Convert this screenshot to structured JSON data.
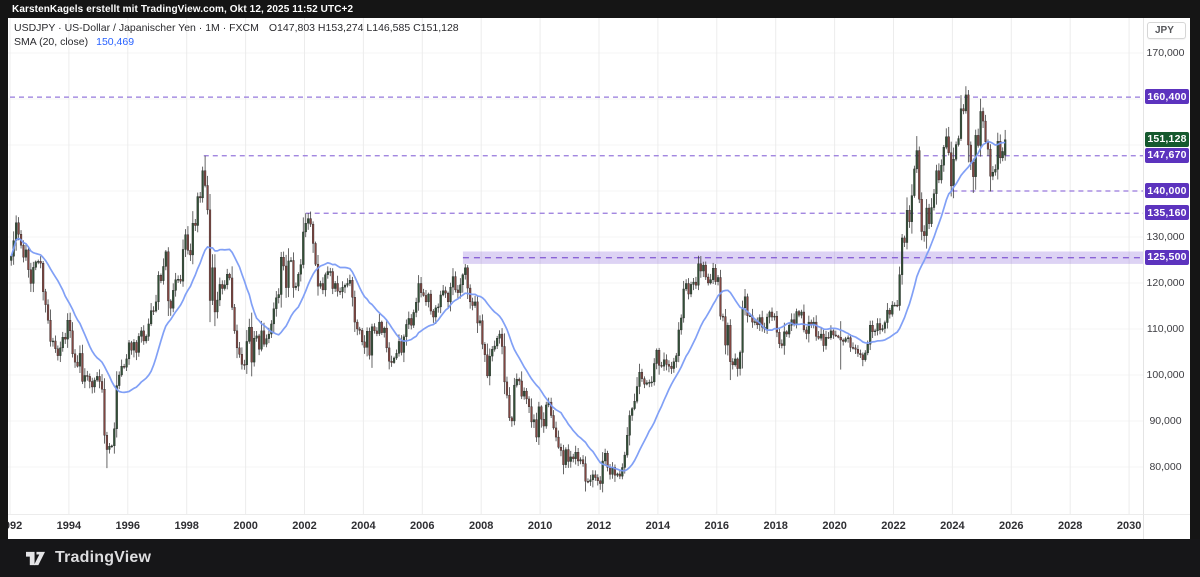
{
  "topbar": {
    "attribution": "KarstenKagels erstellt mit TradingView.com, Okt 12, 2025 11:52 UTC+2"
  },
  "legend": {
    "symbol_line": "USDJPY · US-Dollar / Japanischer Yen · 1M · FXCM",
    "ohlc_line": "O147,803  H153,274  L146,585  C151,128",
    "sma_label": "SMA (20, close)",
    "sma_value": "150,469"
  },
  "axes": {
    "currency_button": "JPY",
    "price_ticks": [
      {
        "label": "170,000",
        "value": 170
      },
      {
        "label": "130,000",
        "value": 130
      },
      {
        "label": "120,000",
        "value": 120
      },
      {
        "label": "110,000",
        "value": 110
      },
      {
        "label": "100,000",
        "value": 100
      },
      {
        "label": "90,000",
        "value": 90
      },
      {
        "label": "80,000",
        "value": 80
      }
    ],
    "price_grid": [
      170,
      160,
      150,
      140,
      130,
      120,
      110,
      100,
      90,
      80
    ],
    "time_ticks": [
      {
        "label": "1992",
        "year": 1992
      },
      {
        "label": "1994",
        "year": 1994
      },
      {
        "label": "1996",
        "year": 1996
      },
      {
        "label": "1998",
        "year": 1998
      },
      {
        "label": "2000",
        "year": 2000
      },
      {
        "label": "2002",
        "year": 2002
      },
      {
        "label": "2004",
        "year": 2004
      },
      {
        "label": "2006",
        "year": 2006
      },
      {
        "label": "2008",
        "year": 2008
      },
      {
        "label": "2010",
        "year": 2010
      },
      {
        "label": "2012",
        "year": 2012
      },
      {
        "label": "2014",
        "year": 2014
      },
      {
        "label": "2016",
        "year": 2016
      },
      {
        "label": "2018",
        "year": 2018
      },
      {
        "label": "2020",
        "year": 2020
      },
      {
        "label": "2022",
        "year": 2022
      },
      {
        "label": "2024",
        "year": 2024
      },
      {
        "label": "2026",
        "year": 2026
      },
      {
        "label": "2028",
        "year": 2028
      },
      {
        "label": "2030",
        "year": 2030
      }
    ]
  },
  "footer": {
    "brand": "TradingView"
  },
  "colors": {
    "badge_purple": "#5c33be",
    "badge_green": "#15592e",
    "candle_up": "#325037",
    "candle_down": "#824641",
    "candle_border": "#232323",
    "wick": "#3f3f3f",
    "sma": "#7a9bf5",
    "level": "#9678dc",
    "band_fill": "rgba(148,118,222,0.32)",
    "band_line": "#8a63d6",
    "grid_v": "#ececec",
    "grid_h": "#f5f5f5",
    "legend_blue": "#2962ff"
  },
  "chart_data": {
    "type": "candlestick",
    "symbol": "USDJPY",
    "description": "US-Dollar / Japanischer Yen",
    "timeframe": "1M",
    "exchange": "FXCM",
    "x_range": [
      1992,
      2030.6
    ],
    "y_range_thousandths": [
      75,
      172
    ],
    "grid": true,
    "sma": {
      "period": 20,
      "source": "close",
      "last_value": 150.469
    },
    "last_candle": {
      "key": "2025-10",
      "o": 147.803,
      "h": 153.274,
      "l": 146.585,
      "c": 151.128
    },
    "first_open": 124.9,
    "monthly_closes": {
      "1992": [
        125.8,
        129.2,
        133.1,
        130.6,
        128.2,
        125.6,
        127.2,
        122.9,
        119.9,
        123.4,
        124.6,
        124.7
      ],
      "1993": [
        124.3,
        118.1,
        115.3,
        111.9,
        107.3,
        107.4,
        105.7,
        104.2,
        105.9,
        108.2,
        107.8,
        111.9
      ],
      "1994": [
        109.6,
        104.6,
        102.8,
        101.9,
        104.7,
        98.6,
        99.9,
        99.7,
        98.6,
        97.4,
        98.9,
        99.7
      ],
      "1995": [
        98.6,
        96.9,
        86.9,
        83.8,
        84.5,
        84.6,
        88.3,
        97.7,
        100.0,
        101.9,
        101.7,
        103.5
      ],
      "1996": [
        107.0,
        105.4,
        107.1,
        104.9,
        108.4,
        109.6,
        107.4,
        108.4,
        111.1,
        114.0,
        113.9,
        115.9
      ],
      "1997": [
        121.7,
        120.5,
        123.6,
        126.8,
        116.1,
        114.5,
        118.4,
        120.7,
        120.8,
        120.4,
        127.3,
        130.5
      ],
      "1998": [
        127.1,
        126.1,
        133.0,
        132.5,
        138.8,
        138.5,
        144.4,
        141.2,
        135.9,
        116.2,
        123.3,
        113.7
      ],
      "1999": [
        116.3,
        119.7,
        118.8,
        119.6,
        121.9,
        121.1,
        114.7,
        109.6,
        105.9,
        104.5,
        102.3,
        102.2
      ],
      "2000": [
        107.3,
        110.4,
        102.8,
        108.0,
        108.5,
        105.6,
        109.6,
        106.7,
        107.9,
        108.9,
        111.1,
        114.4
      ],
      "2001": [
        116.8,
        117.5,
        125.6,
        123.7,
        119.0,
        124.8,
        124.9,
        119.0,
        119.3,
        121.9,
        124.0,
        131.1
      ],
      "2002": [
        133.0,
        134.0,
        132.8,
        128.6,
        124.1,
        119.3,
        119.9,
        118.5,
        121.8,
        122.5,
        122.5,
        118.8
      ],
      "2003": [
        119.9,
        118.2,
        118.1,
        119.1,
        119.5,
        119.9,
        120.6,
        116.9,
        111.5,
        110.0,
        109.7,
        107.2
      ],
      "2004": [
        106.0,
        109.5,
        104.3,
        110.5,
        109.6,
        109.0,
        111.5,
        109.2,
        110.2,
        105.9,
        103.0,
        102.7
      ],
      "2005": [
        103.7,
        104.7,
        107.3,
        104.9,
        108.3,
        111.0,
        112.3,
        110.8,
        113.6,
        115.8,
        119.9,
        117.9
      ],
      "2006": [
        117.3,
        115.9,
        117.6,
        113.9,
        112.6,
        114.6,
        114.8,
        117.4,
        118.3,
        117.8,
        115.9,
        119.1
      ],
      "2007": [
        121.4,
        118.5,
        117.9,
        119.6,
        121.8,
        123.3,
        118.9,
        115.9,
        115.1,
        115.9,
        111.3,
        111.8
      ],
      "2008": [
        106.7,
        104.4,
        99.8,
        104.1,
        105.6,
        106.3,
        108.0,
        108.9,
        106.2,
        98.5,
        95.6,
        90.7
      ],
      "2009": [
        90.0,
        97.8,
        99.1,
        98.7,
        95.4,
        96.5,
        94.8,
        93.1,
        89.8,
        90.3,
        86.5,
        93.1
      ],
      "2010": [
        90.4,
        88.9,
        93.5,
        94.1,
        91.2,
        88.5,
        86.5,
        84.3,
        83.6,
        80.5,
        83.8,
        81.2
      ],
      "2011": [
        82.2,
        81.8,
        83.2,
        81.3,
        81.6,
        80.7,
        76.9,
        76.8,
        77.2,
        78.3,
        77.7,
        77.0
      ],
      "2012": [
        76.4,
        81.3,
        83.0,
        79.9,
        78.4,
        79.9,
        78.2,
        78.5,
        78.0,
        79.9,
        82.6,
        86.9
      ],
      "2013": [
        91.2,
        92.7,
        94.3,
        97.5,
        100.6,
        99.2,
        98.0,
        98.3,
        98.4,
        98.5,
        102.5,
        105.4
      ],
      "2014": [
        102.1,
        101.9,
        103.3,
        102.3,
        101.9,
        101.4,
        102.9,
        104.2,
        109.8,
        112.4,
        118.7,
        119.9
      ],
      "2015": [
        117.6,
        119.7,
        120.2,
        119.5,
        124.2,
        122.6,
        123.9,
        121.3,
        120.0,
        120.7,
        123.2,
        120.3
      ],
      "2016": [
        121.2,
        112.8,
        112.7,
        106.5,
        110.8,
        102.9,
        102.2,
        103.5,
        101.4,
        104.9,
        114.6,
        117.0
      ],
      "2017": [
        112.9,
        112.9,
        111.5,
        111.6,
        110.9,
        112.5,
        110.4,
        110.0,
        112.6,
        113.7,
        112.6,
        112.8
      ],
      "2018": [
        109.3,
        106.8,
        106.4,
        109.4,
        108.9,
        110.8,
        112.0,
        111.1,
        113.8,
        113.0,
        113.7,
        109.8
      ],
      "2019": [
        109.0,
        111.5,
        111.0,
        111.5,
        108.4,
        108.0,
        108.9,
        106.4,
        108.2,
        108.1,
        109.6,
        108.7
      ],
      "2020": [
        108.5,
        108.2,
        107.6,
        107.3,
        107.9,
        108.1,
        106.0,
        105.9,
        105.6,
        104.7,
        104.4,
        103.3
      ],
      "2021": [
        104.8,
        106.7,
        110.8,
        109.4,
        109.6,
        111.2,
        109.8,
        110.1,
        111.4,
        114.1,
        113.2,
        115.2
      ],
      "2022": [
        115.2,
        115.1,
        121.8,
        129.8,
        128.8,
        135.8,
        133.3,
        139.0,
        144.8,
        148.8,
        138.2,
        131.2
      ],
      "2023": [
        130.3,
        136.3,
        132.9,
        136.4,
        139.4,
        144.4,
        142.4,
        145.6,
        149.5,
        151.8,
        148.3,
        141.1
      ],
      "2024": [
        146.9,
        150.1,
        151.4,
        157.9,
        157.4,
        160.9,
        150.0,
        146.3,
        143.1,
        152.1,
        149.9,
        157.3
      ],
      "2025": [
        155.2,
        150.7,
        149.1,
        143.2,
        144.1,
        144.7,
        150.8,
        147.2,
        148.6,
        151.128
      ]
    },
    "wick_overrides": {
      "1992-03": {
        "h": 134.7
      },
      "1995-04": {
        "l": 79.75
      },
      "1998-08": {
        "h": 147.67
      },
      "1998-10": {
        "l": 111.5
      },
      "1999-11": {
        "l": 101.2
      },
      "2002-01": {
        "h": 135.16
      },
      "2007-06": {
        "h": 124.14
      },
      "2011-10": {
        "l": 75.57
      },
      "2015-06": {
        "h": 125.86
      },
      "2016-06": {
        "l": 98.9
      },
      "2020-03": {
        "l": 101.18,
        "h": 111.71
      },
      "2022-10": {
        "h": 151.94
      },
      "2024-07": {
        "h": 161.95
      },
      "2024-09": {
        "l": 139.58
      },
      "2025-04": {
        "l": 139.89
      }
    },
    "levels": [
      {
        "label": "160,400",
        "value": 160.4,
        "from": 1992.0,
        "style": "dashed"
      },
      {
        "label": "147,670",
        "value": 147.67,
        "from": 1998.58,
        "style": "dashed"
      },
      {
        "label": "140,000",
        "value": 140.0,
        "from": 2024.0,
        "style": "dashed"
      },
      {
        "label": "135,160",
        "value": 135.16,
        "from": 2002.04,
        "style": "dashed"
      },
      {
        "label": "125,500",
        "value": 125.5,
        "from": 2007.38,
        "style": "band",
        "band_half": 1.35
      }
    ],
    "last_price_badge": {
      "label": "151,128",
      "value": 151.128
    }
  }
}
